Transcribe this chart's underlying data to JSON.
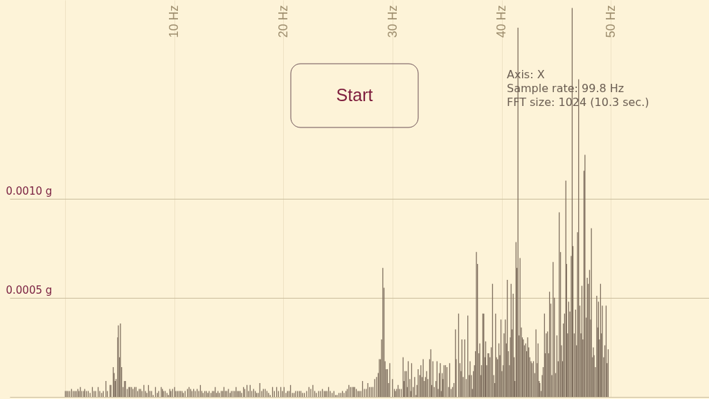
{
  "chart_data": {
    "type": "bar",
    "x": [
      0,
      0.13,
      0.25,
      0.4,
      0.57,
      0.72,
      0.87,
      1.0,
      1.15,
      1.25,
      1.38,
      1.51,
      1.68,
      1.78,
      1.93,
      2.1,
      2.27,
      2.48,
      2.63,
      2.78,
      3.01,
      3.16,
      3.33,
      3.48,
      3.72,
      3.86,
      4.1,
      4.18,
      4.39,
      4.48,
      4.56,
      4.65,
      4.8,
      4.86,
      4.97,
      5.05,
      5.16,
      5.29,
      5.41,
      5.52,
      5.67,
      5.82,
      5.92,
      6.07,
      6.2,
      6.35,
      6.48,
      6.62,
      6.77,
      6.9,
      7.03,
      7.2,
      7.35,
      7.47,
      7.62,
      7.75,
      7.9,
      8.05,
      8.26,
      8.43,
      8.56,
      8.79,
      8.9,
      9.0,
      9.15,
      9.32,
      9.45,
      9.58,
      9.68,
      9.83,
      10.02,
      10.13,
      10.28,
      10.42,
      10.55,
      10.7,
      10.81,
      10.98,
      11.19,
      11.34,
      11.49,
      11.61,
      11.76,
      11.91,
      12.08,
      12.23,
      12.38,
      12.51,
      12.63,
      12.78,
      12.93,
      13.06,
      13.18,
      13.35,
      13.48,
      13.61,
      13.74,
      13.86,
      13.99,
      14.12,
      14.29,
      14.42,
      14.54,
      14.67,
      14.8,
      14.95,
      15.1,
      15.22,
      15.37,
      15.52,
      15.65,
      15.78,
      15.9,
      16.03,
      16.16,
      16.33,
      16.45,
      16.65,
      16.79,
      16.94,
      17.09,
      17.26,
      17.41,
      17.53,
      17.68,
      17.83,
      18.0,
      18.15,
      18.32,
      18.48,
      18.63,
      18.78,
      18.99,
      19.16,
      19.37,
      19.54,
      19.75,
      19.9,
      20.05,
      20.22,
      20.37,
      20.51,
      20.64,
      20.81,
      20.96,
      21.11,
      21.28,
      21.45,
      21.59,
      21.74,
      21.91,
      22.12,
      22.33,
      22.5,
      22.69,
      22.86,
      23.01,
      23.22,
      23.39,
      23.56,
      23.73,
      23.86,
      23.98,
      24.13,
      24.28,
      24.45,
      24.62,
      24.77,
      24.91,
      25.08,
      25.25,
      25.4,
      25.55,
      25.72,
      25.84,
      25.99,
      26.14,
      26.29,
      26.42,
      26.52,
      26.67,
      26.82,
      26.94,
      27.09,
      27.24,
      27.41,
      27.58,
      27.73,
      27.88,
      28.04,
      28.19,
      28.36,
      28.53,
      28.68,
      28.78,
      28.89,
      28.99,
      29.1,
      29.21,
      29.31,
      29.42,
      29.52,
      29.63,
      29.74,
      29.99,
      30.16,
      30.26,
      30.37,
      30.5,
      30.62,
      30.79,
      30.96,
      31.05,
      31.13,
      31.26,
      31.34,
      31.43,
      31.58,
      31.66,
      31.74,
      31.89,
      32.02,
      32.15,
      32.23,
      32.34,
      32.49,
      32.59,
      32.7,
      32.8,
      32.91,
      33.01,
      33.12,
      33.23,
      33.39,
      33.5,
      33.58,
      33.69,
      33.82,
      33.97,
      34.07,
      34.18,
      34.28,
      34.37,
      34.45,
      34.54,
      34.62,
      34.71,
      34.85,
      34.98,
      35.13,
      35.23,
      35.36,
      35.49,
      35.62,
      35.76,
      35.83,
      36.05,
      36.17,
      36.28,
      36.35,
      36.47,
      36.61,
      36.75,
      36.89,
      37.01,
      37.1,
      37.22,
      37.31,
      37.4,
      37.5,
      37.59,
      37.68,
      37.78,
      37.9,
      37.99,
      38.08,
      38.15,
      38.27,
      38.36,
      38.46,
      38.53,
      38.62,
      38.74,
      38.81,
      38.92,
      39.04,
      39.16,
      39.27,
      39.37,
      39.44,
      39.53,
      39.62,
      39.74,
      39.83,
      39.93,
      40.02,
      40.14,
      40.21,
      40.33,
      40.42,
      40.51,
      40.61,
      40.72,
      40.79,
      40.86,
      40.96,
      41.05,
      41.14,
      41.21,
      41.31,
      41.4,
      41.49,
      41.59,
      41.68,
      41.8,
      41.89,
      41.98,
      42.08,
      42.2,
      42.29,
      42.38,
      42.48,
      42.57,
      42.69,
      42.78,
      42.91,
      43.03,
      43.14,
      43.26,
      43.33,
      43.43,
      43.5,
      43.61,
      43.71,
      43.8,
      43.92,
      44.01,
      44.08,
      44.2,
      44.29,
      44.38,
      44.5,
      44.59,
      44.71,
      44.83,
      44.94,
      45.06,
      45.18,
      45.27,
      45.39,
      45.48,
      45.58,
      45.65,
      45.76,
      45.88,
      45.95,
      46.04,
      46.14,
      46.25,
      46.37,
      46.46,
      46.53,
      46.65,
      46.77,
      46.86,
      46.95,
      47.05,
      47.16,
      47.26,
      47.35,
      47.44,
      47.54,
      47.63,
      47.75,
      47.84,
      47.94,
      48.05,
      48.15,
      48.22,
      48.33,
      48.4,
      48.47,
      48.59,
      48.71,
      48.8,
      48.87,
      48.96,
      49.06,
      49.15,
      49.22,
      49.34,
      49.45,
      49.57,
      49.66,
      49.76
    ],
    "values": [
      3e-05,
      3e-05,
      3e-05,
      3e-05,
      4e-05,
      3e-05,
      3e-05,
      3e-05,
      4e-05,
      3e-05,
      5e-05,
      3e-05,
      3e-05,
      4e-05,
      3e-05,
      3e-05,
      2e-05,
      5e-05,
      3e-05,
      3e-05,
      5e-05,
      3e-05,
      2e-05,
      3e-05,
      8e-05,
      3e-05,
      6e-05,
      6e-05,
      0.00015,
      0.00012,
      8e-05,
      9e-05,
      0.0003,
      0.00036,
      0.0002,
      0.00037,
      0.00015,
      5e-05,
      8e-05,
      8e-05,
      4e-05,
      5e-05,
      5e-05,
      5e-05,
      4e-05,
      5e-05,
      5e-05,
      3e-05,
      4e-05,
      4e-05,
      3e-05,
      6e-05,
      3e-05,
      2e-05,
      6e-05,
      3e-05,
      3e-05,
      1e-05,
      5e-05,
      2e-05,
      3e-05,
      5e-05,
      4e-05,
      3e-05,
      3e-05,
      2e-05,
      1e-05,
      4e-05,
      3e-05,
      4e-05,
      5e-05,
      3e-05,
      3e-05,
      3e-05,
      3e-05,
      3e-05,
      2e-05,
      3e-05,
      4e-05,
      5e-05,
      4e-05,
      3e-05,
      4e-05,
      3e-05,
      4e-05,
      3e-05,
      6e-05,
      3e-05,
      2e-05,
      3e-05,
      3e-05,
      2e-05,
      3e-05,
      2e-05,
      3e-05,
      3e-05,
      5e-05,
      2e-05,
      3e-05,
      2e-05,
      3e-05,
      3e-05,
      5e-05,
      3e-05,
      3e-05,
      4e-05,
      2e-05,
      3e-05,
      3e-05,
      3e-05,
      5e-05,
      3e-05,
      3e-05,
      3e-05,
      2e-05,
      5e-05,
      4e-05,
      6e-05,
      3e-05,
      6e-05,
      3e-05,
      4e-05,
      3e-05,
      2e-05,
      2e-05,
      7e-05,
      3e-05,
      4e-05,
      4e-05,
      3e-05,
      2e-05,
      1e-05,
      5e-05,
      3e-05,
      5e-05,
      3e-05,
      5e-05,
      3e-05,
      5e-05,
      2e-05,
      3e-05,
      3e-05,
      6e-05,
      2e-05,
      2e-05,
      3e-05,
      3e-05,
      3e-05,
      3e-05,
      2e-05,
      2e-05,
      3e-05,
      5e-05,
      4e-05,
      6e-05,
      3e-05,
      2e-05,
      3e-05,
      3e-05,
      4e-05,
      3e-05,
      3e-05,
      3e-05,
      5e-05,
      3e-05,
      2e-05,
      3e-05,
      1e-05,
      1e-05,
      2e-05,
      2e-05,
      3e-05,
      2e-05,
      3e-05,
      4e-05,
      6e-05,
      5e-05,
      5e-05,
      5e-05,
      5e-05,
      4e-05,
      3e-05,
      3e-05,
      3e-05,
      8e-05,
      4e-05,
      4e-05,
      7e-05,
      5e-05,
      5e-05,
      5e-05,
      9e-05,
      0.0001,
      0.00012,
      0.00019,
      0.00019,
      0.00029,
      0.00065,
      0.00055,
      0.00018,
      0.00014,
      0.00014,
      7e-05,
      0.00017,
      9e-05,
      4e-05,
      3e-05,
      4e-05,
      6e-05,
      4e-05,
      4e-05,
      0.0002,
      8e-05,
      0.00013,
      0.00013,
      5e-05,
      0.00018,
      9e-05,
      3e-05,
      0.00017,
      5e-05,
      0.0001,
      1e-05,
      6e-05,
      0.00014,
      0.00011,
      0.00016,
      0.0001,
      0.00019,
      8e-05,
      0.0001,
      0.00013,
      9e-05,
      0.00019,
      0.00024,
      6e-05,
      0.00018,
      5e-05,
      8e-05,
      0.00018,
      4e-05,
      0.00012,
      0.00017,
      3e-05,
      0.00012,
      9e-05,
      0.00016,
      0.00016,
      0.00015,
      5e-05,
      0.00017,
      4e-05,
      5e-05,
      7e-05,
      0.00034,
      0.00019,
      0.00042,
      0.00017,
      0.00013,
      0.00029,
      0.0001,
      0.00029,
      9e-05,
      0.00041,
      0.00011,
      0.00018,
      0.00011,
      4e-05,
      0.00013,
      0.00016,
      0.00023,
      0.00073,
      0.00067,
      0.00022,
      0.00027,
      0.00011,
      0.00016,
      0.00042,
      0.00042,
      0.0002,
      0.00028,
      0.00016,
      0.00022,
      0.00022,
      0.0002,
      0.00025,
      0.00057,
      0.00011,
      7e-05,
      0.00042,
      0.0002,
      0.00019,
      0.00027,
      0.00021,
      0.00039,
      0.00013,
      0.00016,
      0.00032,
      0.00039,
      0.00027,
      0.00059,
      0.00023,
      0.00016,
      0.0003,
      0.00057,
      0.00034,
      0.00052,
      0.0002,
      8e-05,
      0.00078,
      0.00065,
      0.00186,
      0.00031,
      0.0007,
      0.00035,
      0.0003,
      0.00029,
      0.00026,
      0.00027,
      0.00023,
      0.0003,
      0.00025,
      0.0002,
      0.00018,
      0.00017,
      0.00018,
      0.00012,
      0.00034,
      0.00017,
      0.00027,
      8e-05,
      7e-05,
      3e-05,
      0.00011,
      0.00015,
      0.00042,
      0.00022,
      0.00032,
      0.00033,
      0.00022,
      0.00053,
      0.00047,
      0.00011,
      0.00068,
      0.0005,
      0.00012,
      0.00031,
      0.00018,
      0.00093,
      0.00073,
      0.00026,
      0.00018,
      0.00037,
      0.00042,
      0.00109,
      0.00067,
      0.00032,
      0.00048,
      0.00043,
      0.00071,
      0.00196,
      0.00076,
      0.00032,
      0.00044,
      0.00026,
      0.00083,
      0.0016,
      0.00046,
      0.00032,
      0.00056,
      0.00029,
      0.00114,
      0.00122,
      0.0004,
      0.0006,
      0.00057,
      0.00064,
      0.00039,
      0.00085,
      0.0002,
      0.00025,
      0.00021,
      0.00015,
      0.00051,
      0.00035,
      0.00048,
      0.00029,
      0.00057,
      0.00032,
      0.00046,
      0.0002,
      0.00026,
      0.00046,
      0.00017,
      0.00024
    ],
    "color": "#7e6e5e",
    "xlim": [
      -5.1,
      59.0
    ],
    "xticks": [
      {
        "value": 0,
        "label": null
      },
      {
        "value": 10,
        "label": "10 Hz"
      },
      {
        "value": 20,
        "label": "20 Hz"
      },
      {
        "value": 30,
        "label": "30 Hz"
      },
      {
        "value": 40,
        "label": "40 Hz"
      },
      {
        "value": 50,
        "label": "50 Hz"
      }
    ],
    "ylim": [
      0,
      0.002
    ],
    "yticks": [
      {
        "value": 0,
        "label": null
      },
      {
        "value": 0.0005,
        "label": "0.0005 g"
      },
      {
        "value": 0.001,
        "label": "0.0010 g"
      }
    ],
    "grid": true,
    "annotations": [
      "Start",
      "Axis: X",
      "Sample rate: 99.8 Hz",
      "FFT size: 1024 (10.3 sec.)"
    ]
  }
}
